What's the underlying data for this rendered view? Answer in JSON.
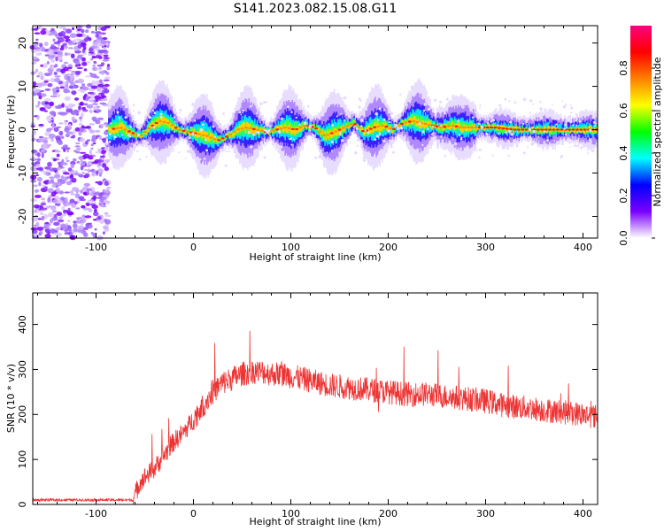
{
  "figure": {
    "title": "S141.2023.082.15.08.G11"
  },
  "chart_data": [
    {
      "type": "heatmap",
      "name": "spectrogram",
      "xlabel": "Height of straight line (km)",
      "ylabel": "Frequency (Hz)",
      "xlim": [
        -165,
        415
      ],
      "ylim": [
        -25,
        24
      ],
      "xticks": [
        -100,
        0,
        100,
        200,
        300,
        400
      ],
      "yticks": [
        -20,
        -10,
        0,
        10,
        20
      ],
      "noise_region_x": [
        -165,
        -87
      ],
      "signal_start_x": -87,
      "ridge": {
        "x": [
          -87,
          -75,
          -65,
          -55,
          -45,
          -35,
          -25,
          -15,
          -5,
          5,
          15,
          25,
          35,
          45,
          55,
          65,
          75,
          85,
          95,
          105,
          115,
          125,
          135,
          145,
          155,
          165,
          175,
          185,
          195,
          205,
          215,
          225,
          235,
          245,
          255,
          265,
          275,
          285,
          295,
          310,
          330,
          350,
          370,
          390,
          415
        ],
        "y": [
          0,
          0.5,
          -0.5,
          -1.5,
          0.5,
          2,
          1.5,
          0,
          -0.5,
          -1,
          -1.5,
          -2.5,
          -1.5,
          0,
          0.5,
          0,
          -0.5,
          0,
          0.5,
          0,
          1,
          0.5,
          -1.5,
          -0.5,
          0.5,
          1.5,
          -0.5,
          0.5,
          1,
          0,
          1.5,
          2,
          1.5,
          1,
          0.5,
          1,
          0.5,
          0.5,
          0.5,
          0.5,
          0,
          0,
          0,
          0,
          0
        ]
      },
      "colorbar": {
        "label": "Normalized spectral amplitude",
        "range": [
          0,
          1
        ],
        "ticks": [
          0.0,
          0.2,
          0.4,
          0.6,
          0.8
        ],
        "tick_labels": [
          "0.0",
          "0.2",
          "0.4",
          "0.6",
          "0.8"
        ],
        "stops": [
          "#ffffff",
          "#7a00ff",
          "#0000ff",
          "#00ffff",
          "#00ff00",
          "#ffff00",
          "#ff8000",
          "#ff0000",
          "#ff0080"
        ]
      }
    },
    {
      "type": "line",
      "name": "snr",
      "xlabel": "Height of straight line (km)",
      "ylabel": "SNR (10 * v/v)",
      "xlim": [
        -165,
        415
      ],
      "ylim": [
        0,
        470
      ],
      "xticks": [
        -100,
        0,
        100,
        200,
        300,
        400
      ],
      "yticks": [
        0,
        100,
        200,
        300,
        400
      ],
      "color": "#ee3333",
      "envelope": {
        "x": [
          -165,
          -100,
          -62,
          -55,
          -50,
          -40,
          -30,
          -20,
          -10,
          0,
          10,
          20,
          30,
          40,
          50,
          60,
          70,
          80,
          90,
          100,
          120,
          140,
          160,
          180,
          200,
          220,
          240,
          260,
          280,
          300,
          320,
          340,
          360,
          380,
          400,
          415
        ],
        "y": [
          10,
          10,
          10,
          50,
          60,
          80,
          110,
          140,
          160,
          190,
          220,
          250,
          270,
          280,
          290,
          295,
          295,
          290,
          290,
          285,
          275,
          265,
          260,
          255,
          250,
          245,
          245,
          240,
          235,
          230,
          220,
          215,
          210,
          205,
          200,
          195
        ]
      }
    }
  ]
}
